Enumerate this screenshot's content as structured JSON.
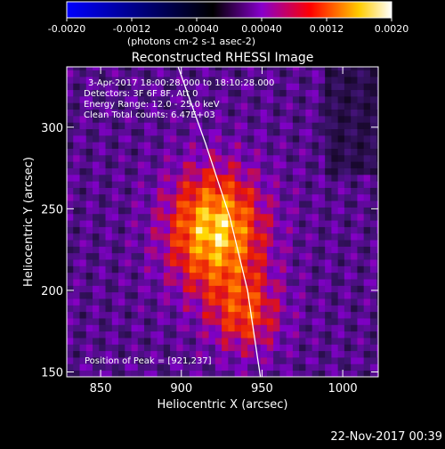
{
  "chart_data": {
    "type": "heatmap",
    "title": "Reconstructed RHESSI Image",
    "xlabel": "Heliocentric X (arcsec)",
    "ylabel": "Heliocentric Y (arcsec)",
    "xlim": [
      829,
      1022
    ],
    "ylim": [
      147,
      337
    ],
    "x_ticks": [
      850,
      900,
      950,
      1000
    ],
    "y_ticks": [
      150,
      200,
      250,
      300
    ],
    "x_tick_labels": [
      "850",
      "900",
      "950",
      "1000"
    ],
    "y_tick_labels": [
      "150",
      "200",
      "250",
      "300"
    ],
    "annotations": [
      "3-Apr-2017 18:00:28.000 to 18:10:28.000",
      "Detectors: 3F 6F 8F, Att 0",
      "Energy Range: 12.0 - 25.0 keV",
      "Clean      Total counts: 6.47E+03"
    ],
    "peak_label": "Position of Peak = [921,237]",
    "peak": [
      921,
      237
    ],
    "colorbar": {
      "range": [
        -0.002,
        0.002
      ],
      "ticks": [
        "-0.0020",
        "-0.0012",
        "-0.00040",
        "0.00040",
        "0.0012",
        "0.0020"
      ],
      "units": "(photons cm-2 s-1 asec-2)",
      "colors": [
        "#0000ff",
        "#000000",
        "#8800cc",
        "#ff0000",
        "#ffcc00",
        "#ffffff"
      ]
    },
    "limb_line": [
      [
        898,
        337
      ],
      [
        915,
        290
      ],
      [
        930,
        245
      ],
      [
        941,
        200
      ],
      [
        947,
        160
      ],
      [
        949,
        147
      ]
    ],
    "peak_value": 0.002,
    "grid": false
  },
  "footer_timestamp": "22-Nov-2017 00:39"
}
